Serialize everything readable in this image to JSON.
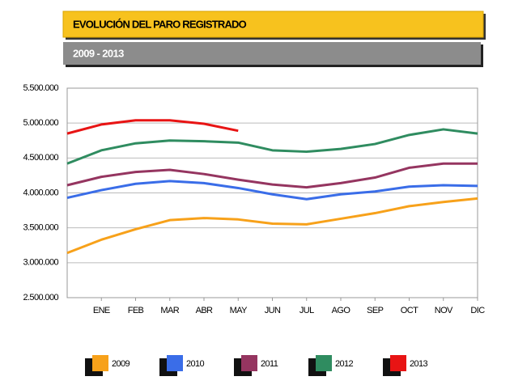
{
  "chart_data": {
    "type": "line",
    "title": "EVOLUCIÓN DEL PARO REGISTRADO",
    "subtitle": "2009  - 2013",
    "categories": [
      null,
      "ENE",
      "FEB",
      "MAR",
      "ABR",
      "MAY",
      "JUN",
      "JUL",
      "AGO",
      "SEP",
      "OCT",
      "NOV",
      "DIC"
    ],
    "series": [
      {
        "name": "2009",
        "color": "#f7a11a",
        "values": [
          3140000,
          3330000,
          3480000,
          3610000,
          3640000,
          3620000,
          3560000,
          3550000,
          3630000,
          3710000,
          3810000,
          3870000,
          3920000
        ]
      },
      {
        "name": "2010",
        "color": "#3a6de8",
        "values": [
          3930000,
          4040000,
          4130000,
          4170000,
          4140000,
          4070000,
          3980000,
          3910000,
          3980000,
          4020000,
          4090000,
          4110000,
          4100000
        ]
      },
      {
        "name": "2011",
        "color": "#953560",
        "values": [
          4110000,
          4230000,
          4300000,
          4330000,
          4270000,
          4190000,
          4120000,
          4080000,
          4140000,
          4220000,
          4360000,
          4420000,
          4420000
        ]
      },
      {
        "name": "2012",
        "color": "#2f8c60",
        "values": [
          4420000,
          4610000,
          4710000,
          4750000,
          4740000,
          4720000,
          4610000,
          4590000,
          4630000,
          4700000,
          4830000,
          4910000,
          4850000
        ]
      },
      {
        "name": "2013",
        "color": "#e81414",
        "values": [
          4850000,
          4980000,
          5040000,
          5040000,
          4990000,
          4890000,
          null,
          null,
          null,
          null,
          null,
          null,
          null
        ]
      }
    ],
    "ylim": [
      2500000,
      5500000
    ],
    "yticks": [
      {
        "value": 2500000,
        "label": "2.500.000"
      },
      {
        "value": 3000000,
        "label": "3.000.000"
      },
      {
        "value": 3500000,
        "label": "3.500.000"
      },
      {
        "value": 4000000,
        "label": "4.000.000"
      },
      {
        "value": 4500000,
        "label": "4.500.000"
      },
      {
        "value": 5000000,
        "label": "5.000.000"
      },
      {
        "value": 5500000,
        "label": "5.500.000"
      }
    ],
    "grid": true
  }
}
